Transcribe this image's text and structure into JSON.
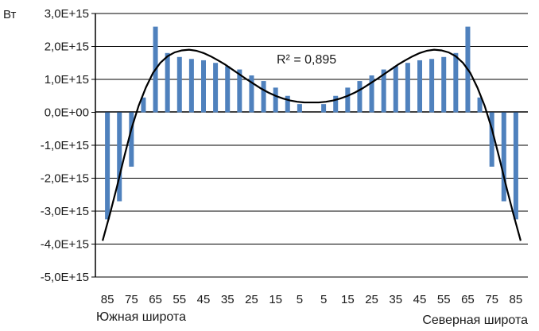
{
  "chart_data": {
    "type": "bar",
    "y_unit": "Вт",
    "y_ticks": [
      "3,0E+15",
      "2,0E+15",
      "1,0E+15",
      "0,0E+00",
      "-1,0E+15",
      "-2,0E+15",
      "-3,0E+15",
      "-4,0E+15",
      "-5,0E+15"
    ],
    "ylim": [
      -5000000000000000.0,
      3000000000000000.0
    ],
    "grid": true,
    "x_tick_labels": [
      "85",
      "75",
      "65",
      "55",
      "45",
      "35",
      "25",
      "15",
      "5",
      "5",
      "15",
      "25",
      "35",
      "45",
      "55",
      "65",
      "75",
      "85"
    ],
    "hemisphere_labels": {
      "south": "Южная широта",
      "north": "Северная широта"
    },
    "series": [
      {
        "type": "bar",
        "color": "#4f81bd",
        "latitudes": [
          -85,
          -80,
          -75,
          -70,
          -65,
          -60,
          -55,
          -50,
          -45,
          -40,
          -35,
          -30,
          -25,
          -20,
          -15,
          -10,
          -5,
          5,
          10,
          15,
          20,
          25,
          30,
          35,
          40,
          45,
          50,
          55,
          60,
          65,
          70,
          75,
          80,
          85
        ],
        "values": [
          -3250000000000000.0,
          -2700000000000000.0,
          -1650000000000000.0,
          450000000000000.0,
          2600000000000000.0,
          1800000000000000.0,
          1680000000000000.0,
          1620000000000000.0,
          1580000000000000.0,
          1500000000000000.0,
          1400000000000000.0,
          1300000000000000.0,
          1120000000000000.0,
          950000000000000.0,
          750000000000000.0,
          500000000000000.0,
          250000000000000.0,
          250000000000000.0,
          500000000000000.0,
          750000000000000.0,
          950000000000000.0,
          1120000000000000.0,
          1300000000000000.0,
          1400000000000000.0,
          1500000000000000.0,
          1580000000000000.0,
          1620000000000000.0,
          1680000000000000.0,
          1800000000000000.0,
          2600000000000000.0,
          450000000000000.0,
          -1650000000000000.0,
          -2700000000000000.0,
          -3250000000000000.0
        ]
      },
      {
        "type": "line",
        "color": "#000000",
        "latitudes": [
          -87,
          -84,
          -81,
          -78,
          -75,
          -72,
          -69,
          -66,
          -63,
          -60,
          -57,
          -54,
          -51,
          -48,
          -45,
          -42,
          -39,
          -36,
          -33,
          -30,
          -27,
          -24,
          -21,
          -18,
          -15,
          -12,
          -9,
          -6,
          -3,
          0,
          3,
          6,
          9,
          12,
          15,
          18,
          21,
          24,
          27,
          30,
          33,
          36,
          39,
          42,
          45,
          48,
          51,
          54,
          57,
          60,
          63,
          66,
          69,
          72,
          75,
          78,
          81,
          84,
          87
        ],
        "values": [
          -3900000000000000.0,
          -3100000000000000.0,
          -2250000000000000.0,
          -1350000000000000.0,
          -500000000000000.0,
          200000000000000.0,
          750000000000000.0,
          1200000000000000.0,
          1500000000000000.0,
          1700000000000000.0,
          1820000000000000.0,
          1880000000000000.0,
          1900000000000000.0,
          1870000000000000.0,
          1800000000000000.0,
          1700000000000000.0,
          1580000000000000.0,
          1450000000000000.0,
          1300000000000000.0,
          1150000000000000.0,
          1000000000000000.0,
          860000000000000.0,
          720000000000000.0,
          600000000000000.0,
          500000000000000.0,
          420000000000000.0,
          360000000000000.0,
          320000000000000.0,
          300000000000000.0,
          300000000000000.0,
          300000000000000.0,
          320000000000000.0,
          360000000000000.0,
          420000000000000.0,
          500000000000000.0,
          600000000000000.0,
          720000000000000.0,
          860000000000000.0,
          1000000000000000.0,
          1150000000000000.0,
          1300000000000000.0,
          1450000000000000.0,
          1580000000000000.0,
          1700000000000000.0,
          1800000000000000.0,
          1870000000000000.0,
          1900000000000000.0,
          1880000000000000.0,
          1820000000000000.0,
          1700000000000000.0,
          1500000000000000.0,
          1200000000000000.0,
          750000000000000.0,
          200000000000000.0,
          -500000000000000.0,
          -1350000000000000.0,
          -2250000000000000.0,
          -3100000000000000.0,
          -3900000000000000.0
        ]
      }
    ],
    "annotations": [
      {
        "text": "R² = 0,895"
      }
    ]
  }
}
